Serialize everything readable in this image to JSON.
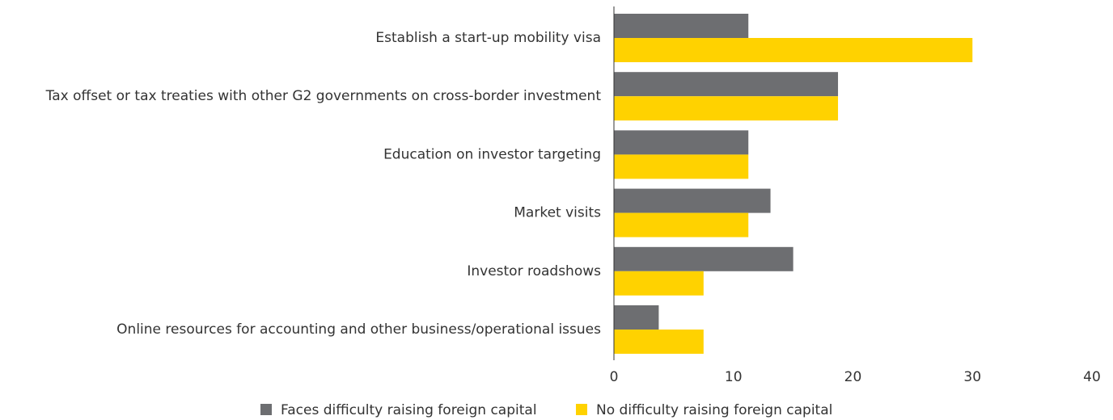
{
  "chart_data": {
    "type": "bar",
    "orientation": "horizontal",
    "categories": [
      "Establish a start-up mobility visa",
      "Tax offset or tax treaties with other G2 governments on cross-border investment",
      "Education on investor targeting",
      "Market visits",
      "Investor roadshows",
      "Online resources for accounting and other business/operational issues"
    ],
    "series": [
      {
        "name": "Faces difficulty raising foreign capital",
        "color": "#6d6e71",
        "values": [
          11.25,
          18.75,
          11.25,
          13.1,
          15,
          3.75
        ]
      },
      {
        "name": "No difficulty raising foreign capital",
        "color": "#ffd200",
        "values": [
          30,
          18.75,
          11.25,
          11.25,
          7.5,
          7.5
        ]
      }
    ],
    "xlim": [
      0,
      40
    ],
    "xticks": [
      0,
      10,
      20,
      30,
      40
    ],
    "grid": false,
    "legend": "bottom"
  }
}
